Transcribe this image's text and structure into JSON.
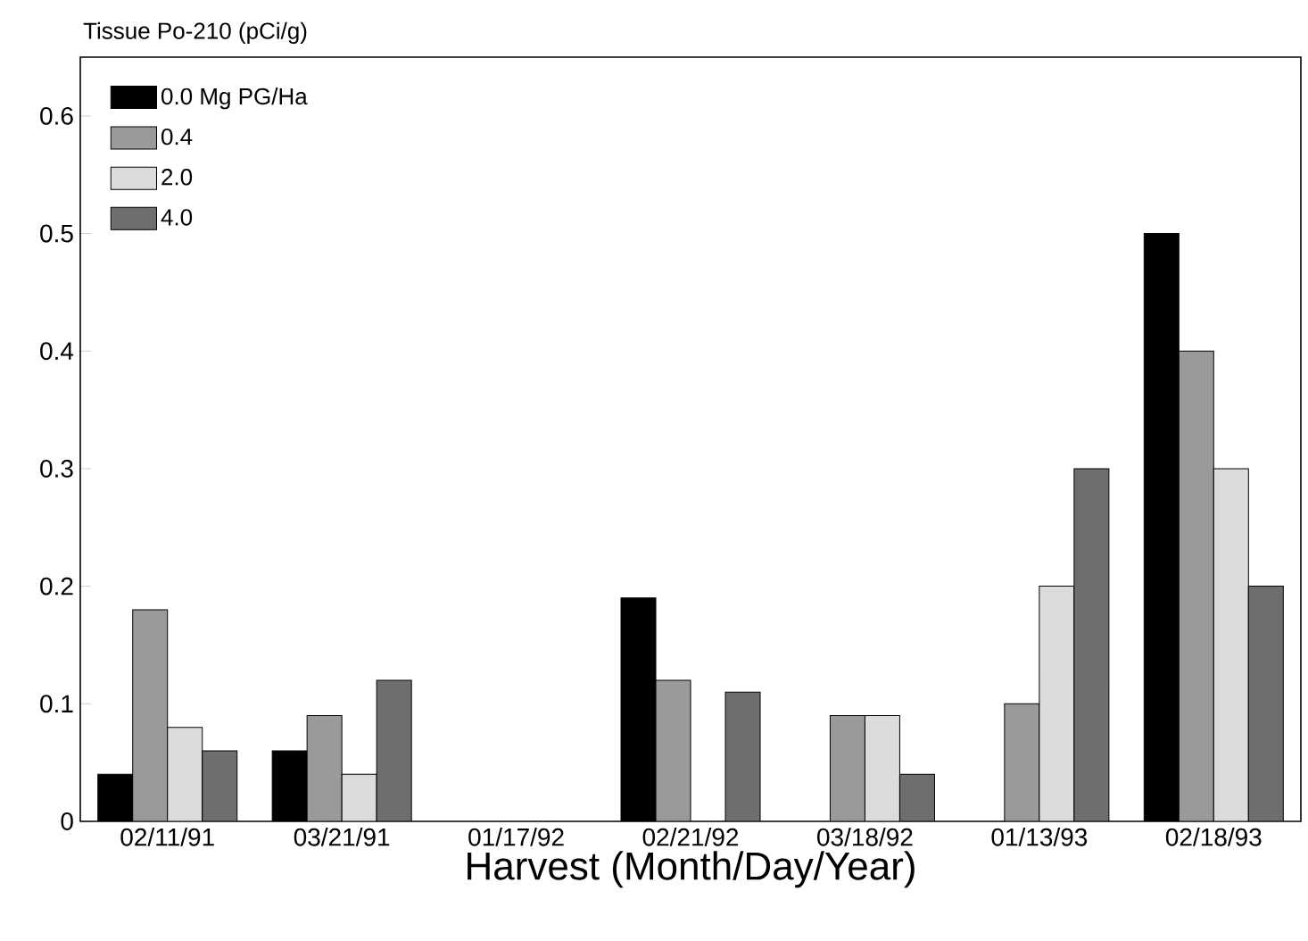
{
  "chart_data": {
    "type": "bar",
    "ylabel": "Tissue Po-210 (pCi/g)",
    "xlabel": "Harvest (Month/Day/Year)",
    "categories": [
      "02/11/91",
      "03/21/91",
      "01/17/92",
      "02/21/92",
      "03/18/92",
      "01/13/93",
      "02/18/93"
    ],
    "series": [
      {
        "name": "0.0 Mg PG/Ha",
        "color": "#000000",
        "values": [
          0.04,
          0.06,
          null,
          0.19,
          null,
          null,
          0.5
        ]
      },
      {
        "name": "0.4",
        "color": "#9a9a9a",
        "values": [
          0.18,
          0.09,
          null,
          0.12,
          0.09,
          0.1,
          0.4
        ]
      },
      {
        "name": "2.0",
        "color": "#dcdcdc",
        "values": [
          0.08,
          0.04,
          null,
          null,
          0.09,
          0.2,
          0.3
        ]
      },
      {
        "name": "4.0",
        "color": "#6e6e6e",
        "values": [
          0.06,
          0.12,
          null,
          0.11,
          0.04,
          0.3,
          0.2
        ]
      }
    ],
    "ylim": [
      0,
      0.65
    ],
    "yticks": [
      0,
      0.1,
      0.2,
      0.3,
      0.4,
      0.5,
      0.6
    ],
    "grid": false,
    "legend": "top left"
  }
}
